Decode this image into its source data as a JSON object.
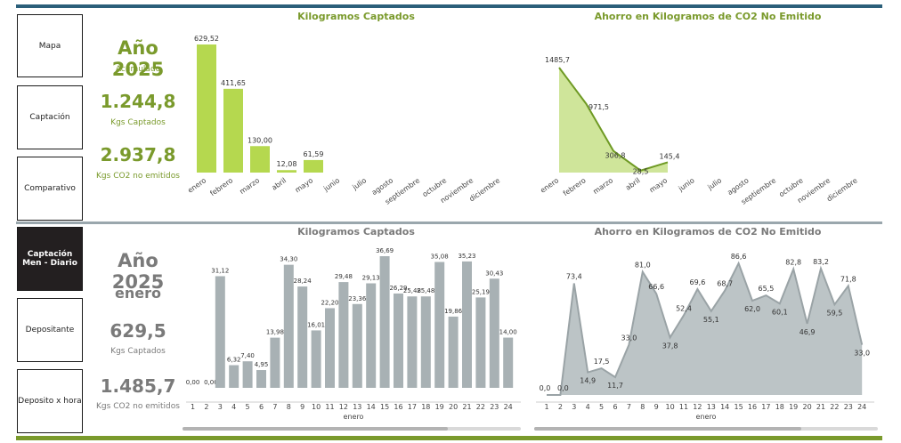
{
  "colors": {
    "green": "#7a9a2c",
    "bar_green": "#b5d84f",
    "area_green": "#cfe59a",
    "line_green": "#6f9a24",
    "gray_bar": "#a8b1b4",
    "gray_area": "#bcc4c6",
    "gray_line": "#9aa3a6",
    "dark_nav": "#231f20"
  },
  "nav": [
    {
      "label": "Mapa"
    },
    {
      "label": "Captación"
    },
    {
      "label": "Comparativo"
    },
    {
      "label": "Captación Men - Diario",
      "active": true
    },
    {
      "label": "Depositante"
    },
    {
      "label": "Deposito x hora"
    }
  ],
  "top": {
    "year": "Año 2025",
    "year_sub": "Acumulado",
    "kgs": "1.244,8",
    "kgs_label": "Kgs Captados",
    "co2": "2.937,8",
    "co2_label": "Kgs CO2 no emitidos"
  },
  "bottom": {
    "year": "Año 2025",
    "month": "enero",
    "kgs": "629,5",
    "kgs_label": "Kgs Captados",
    "co2": "1.485,7",
    "co2_label": "Kgs CO2 no emitidos"
  },
  "chart_data": [
    {
      "type": "bar",
      "title": "Kilogramos Captados",
      "categories": [
        "enero",
        "febrero",
        "marzo",
        "abril",
        "mayo",
        "junio",
        "julio",
        "agosto",
        "septiembre",
        "octubre",
        "noviembre",
        "diciembre"
      ],
      "values": [
        629.52,
        411.65,
        130.0,
        12.08,
        61.59,
        null,
        null,
        null,
        null,
        null,
        null,
        null
      ],
      "labels": [
        "629,52",
        "411,65",
        "130,00",
        "12,08",
        "61,59",
        "",
        "",
        "",
        "",
        "",
        "",
        ""
      ]
    },
    {
      "type": "area",
      "title": "Ahorro en Kilogramos de CO2 No Emitido",
      "categories": [
        "enero",
        "febrero",
        "marzo",
        "abril",
        "mayo",
        "junio",
        "julio",
        "agosto",
        "septiembre",
        "octubre",
        "noviembre",
        "diciembre"
      ],
      "values": [
        1485.7,
        971.5,
        306.8,
        28.5,
        145.4,
        null,
        null,
        null,
        null,
        null,
        null,
        null
      ],
      "labels": [
        "1485,7",
        "971,5",
        "306,8",
        "28,5",
        "145,4",
        "",
        "",
        "",
        "",
        "",
        "",
        ""
      ]
    },
    {
      "type": "bar",
      "title": "Kilogramos Captados",
      "xlabel": "enero",
      "categories": [
        "1",
        "2",
        "3",
        "4",
        "5",
        "6",
        "7",
        "8",
        "9",
        "10",
        "11",
        "12",
        "13",
        "14",
        "15",
        "16",
        "17",
        "18",
        "19",
        "20",
        "21",
        "22",
        "23",
        "24"
      ],
      "values": [
        0,
        0,
        31.12,
        6.32,
        7.4,
        4.95,
        13.98,
        34.3,
        28.24,
        16.01,
        22.2,
        29.48,
        23.36,
        29.13,
        36.69,
        26.29,
        25.48,
        25.48,
        35.08,
        19.86,
        35.23,
        25.19,
        30.43,
        14.0
      ],
      "labels": [
        "0,00",
        "0,00",
        "31,12",
        "6,32",
        "7,40",
        "4,95",
        "13,98",
        "34,30",
        "28,24",
        "16,01",
        "22,20",
        "29,48",
        "23,36",
        "29,13",
        "36,69",
        "26,29",
        "25,48",
        "25,48",
        "35,08",
        "19,86",
        "35,23",
        "25,19",
        "30,43",
        "14,00"
      ]
    },
    {
      "type": "area",
      "title": "Ahorro en Kilogramos de CO2 No Emitido",
      "xlabel": "enero",
      "categories": [
        "1",
        "2",
        "3",
        "4",
        "5",
        "6",
        "7",
        "8",
        "9",
        "10",
        "11",
        "12",
        "13",
        "14",
        "15",
        "16",
        "17",
        "18",
        "19",
        "20",
        "21",
        "22",
        "23",
        "24"
      ],
      "values": [
        0.0,
        0.0,
        73.4,
        14.9,
        17.5,
        11.7,
        33.0,
        81.0,
        66.6,
        37.8,
        52.4,
        69.6,
        55.1,
        68.7,
        86.6,
        62.0,
        65.5,
        60.1,
        82.8,
        46.9,
        83.2,
        59.5,
        71.8,
        33.0
      ],
      "labels": [
        "0,0",
        "0,0",
        "73,4",
        "14,9",
        "17,5",
        "11,7",
        "33,0",
        "81,0",
        "66,6",
        "37,8",
        "52,4",
        "69,6",
        "55,1",
        "68,7",
        "86,6",
        "62,0",
        "65,5",
        "60,1",
        "82,8",
        "46,9",
        "83,2",
        "59,5",
        "71,8",
        "33,0"
      ]
    }
  ]
}
